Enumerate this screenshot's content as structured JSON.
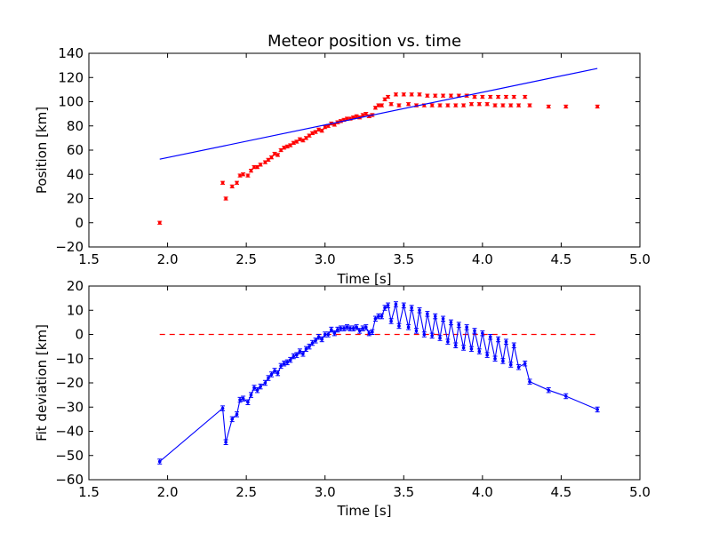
{
  "chart_data": [
    {
      "type": "scatter",
      "title": "Meteor position vs. time",
      "xlabel": "Time [s]",
      "ylabel": "Position [km]",
      "xlim": [
        1.5,
        5.0
      ],
      "ylim": [
        -20,
        140
      ],
      "xticks": [
        "1.5",
        "2.0",
        "2.5",
        "3.0",
        "3.5",
        "4.0",
        "4.5",
        "5.0"
      ],
      "yticks": [
        "−20",
        "0",
        "20",
        "40",
        "60",
        "80",
        "100",
        "120",
        "140"
      ],
      "grid": false,
      "colors": {
        "points": "#ff0000",
        "fit_line": "#0000ff"
      },
      "series": [
        {
          "kind": "points-with-error",
          "x": [
            1.95,
            2.35,
            2.37,
            2.41,
            2.44,
            2.46,
            2.48,
            2.51,
            2.53,
            2.55,
            2.57,
            2.59,
            2.62,
            2.64,
            2.66,
            2.68,
            2.7,
            2.72,
            2.74,
            2.76,
            2.78,
            2.8,
            2.82,
            2.84,
            2.86,
            2.88,
            2.9,
            2.92,
            2.94,
            2.96,
            2.98,
            3.0,
            3.02,
            3.04,
            3.06,
            3.08,
            3.1,
            3.12,
            3.14,
            3.16,
            3.18,
            3.2,
            3.22,
            3.24,
            3.26,
            3.28,
            3.3,
            3.32,
            3.34,
            3.36,
            3.38,
            3.4,
            3.42,
            3.45,
            3.47,
            3.5,
            3.53,
            3.55,
            3.58,
            3.6,
            3.63,
            3.65,
            3.68,
            3.7,
            3.73,
            3.75,
            3.78,
            3.8,
            3.83,
            3.85,
            3.88,
            3.9,
            3.93,
            3.95,
            3.98,
            4.0,
            4.03,
            4.05,
            4.08,
            4.1,
            4.13,
            4.15,
            4.18,
            4.2,
            4.23,
            4.27,
            4.3,
            4.42,
            4.53,
            4.73
          ],
          "y": [
            0,
            33,
            20,
            30,
            33,
            39,
            40,
            39,
            43,
            46,
            46,
            48,
            50,
            52,
            54,
            57,
            56,
            60,
            62,
            63,
            64,
            66,
            67,
            69,
            68,
            70,
            72,
            74,
            75,
            77,
            76,
            79,
            80,
            82,
            81,
            83,
            84,
            85,
            86,
            86,
            87,
            88,
            87,
            89,
            90,
            88,
            89,
            95,
            97,
            97,
            102,
            104,
            98,
            106,
            97,
            106,
            98,
            106,
            97,
            106,
            97,
            105,
            97,
            105,
            97,
            105,
            97,
            105,
            97,
            105,
            97,
            105,
            98,
            104,
            98,
            104,
            98,
            104,
            97,
            104,
            97,
            104,
            97,
            104,
            97,
            104,
            97,
            96,
            96,
            96
          ],
          "error": 1.2
        },
        {
          "kind": "line",
          "x": [
            1.95,
            4.73
          ],
          "y": [
            52.5,
            127.5
          ]
        }
      ]
    },
    {
      "type": "line",
      "title": "",
      "xlabel": "Time [s]",
      "ylabel": "Fit deviation [km]",
      "xlim": [
        1.5,
        5.0
      ],
      "ylim": [
        -60,
        20
      ],
      "xticks": [
        "1.5",
        "2.0",
        "2.5",
        "3.0",
        "3.5",
        "4.0",
        "4.5",
        "5.0"
      ],
      "yticks": [
        "−60",
        "−50",
        "−40",
        "−30",
        "−20",
        "−10",
        "0",
        "10",
        "20"
      ],
      "grid": false,
      "colors": {
        "line": "#0000ff",
        "zero_line": "#ff0000"
      },
      "zero_line": {
        "x": [
          1.95,
          4.73
        ],
        "y": 0
      },
      "series": [
        {
          "kind": "line-with-error",
          "x": [
            1.95,
            2.35,
            2.37,
            2.41,
            2.44,
            2.46,
            2.48,
            2.51,
            2.53,
            2.55,
            2.57,
            2.59,
            2.62,
            2.64,
            2.66,
            2.68,
            2.7,
            2.72,
            2.74,
            2.76,
            2.78,
            2.8,
            2.82,
            2.84,
            2.86,
            2.88,
            2.9,
            2.92,
            2.94,
            2.96,
            2.98,
            3.0,
            3.02,
            3.04,
            3.06,
            3.08,
            3.1,
            3.12,
            3.14,
            3.16,
            3.18,
            3.2,
            3.22,
            3.24,
            3.26,
            3.28,
            3.3,
            3.32,
            3.34,
            3.36,
            3.38,
            3.4,
            3.42,
            3.45,
            3.47,
            3.5,
            3.53,
            3.55,
            3.58,
            3.6,
            3.63,
            3.65,
            3.68,
            3.7,
            3.73,
            3.75,
            3.78,
            3.8,
            3.83,
            3.85,
            3.88,
            3.9,
            3.93,
            3.95,
            3.98,
            4.0,
            4.03,
            4.05,
            4.08,
            4.1,
            4.13,
            4.15,
            4.18,
            4.2,
            4.23,
            4.27,
            4.3,
            4.42,
            4.53,
            4.73
          ],
          "y": [
            -52.5,
            -30.5,
            -44.5,
            -35,
            -33,
            -27,
            -26.5,
            -28,
            -25,
            -22,
            -23,
            -21.5,
            -20,
            -18,
            -16.5,
            -15,
            -16,
            -13,
            -12,
            -11.5,
            -10.5,
            -9,
            -8.5,
            -7,
            -8,
            -6,
            -5,
            -3.5,
            -2.5,
            -1,
            -2,
            0,
            0,
            2,
            0.5,
            2,
            2.5,
            2.5,
            3,
            2.5,
            2.5,
            3,
            1.5,
            2.5,
            3,
            0.5,
            1,
            6.5,
            7.5,
            7.5,
            11,
            12,
            5.5,
            12.5,
            3.5,
            12,
            3,
            11,
            1.5,
            10,
            0,
            8.5,
            -0.5,
            7.5,
            -1.5,
            6.5,
            -3,
            5,
            -4.5,
            4,
            -5.5,
            3,
            -6,
            1.5,
            -7,
            0.5,
            -8.5,
            -1,
            -10,
            -2,
            -11,
            -3,
            -12.5,
            -4.5,
            -13.5,
            -12,
            -19.5,
            -23,
            -25.5,
            -31
          ]
        }
      ]
    }
  ]
}
